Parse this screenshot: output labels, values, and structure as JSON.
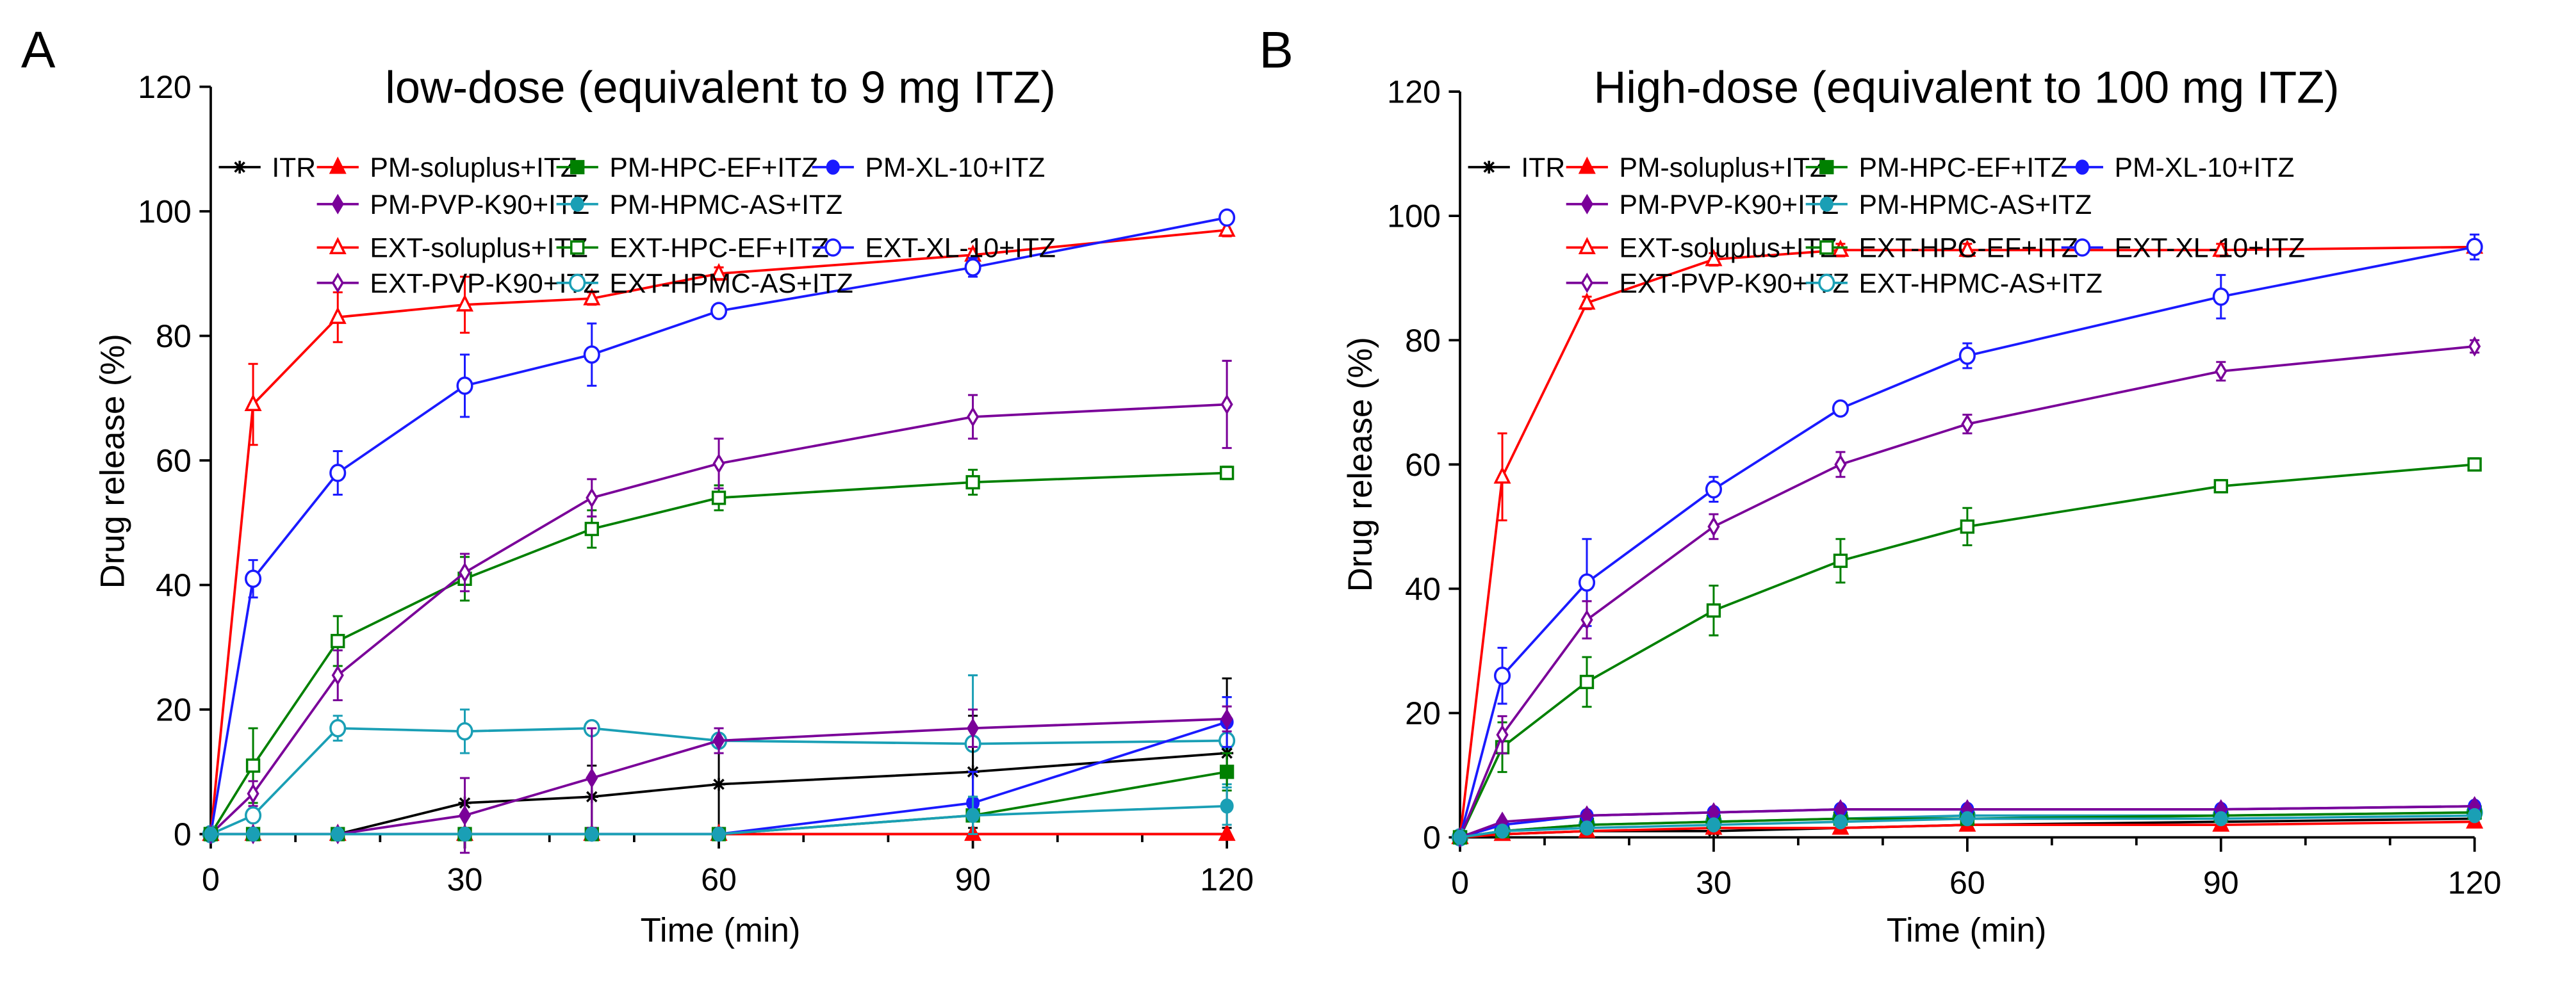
{
  "chart_data": [
    {
      "panel": "A",
      "type": "line",
      "title": "low-dose (equivalent to 9 mg ITZ)",
      "xlabel": "Time (min)",
      "ylabel": "Drug release (%)",
      "xlim": [
        0,
        120
      ],
      "ylim": [
        0,
        120
      ],
      "xticks": [
        0,
        30,
        60,
        90,
        120
      ],
      "yticks": [
        0,
        20,
        40,
        60,
        80,
        100,
        120
      ],
      "x": [
        0,
        5,
        15,
        30,
        45,
        60,
        90,
        120
      ],
      "legend_position": "top",
      "series": [
        {
          "name": "ITR",
          "color": "#000000",
          "marker": "star",
          "values": [
            0,
            0,
            0,
            5,
            6,
            8,
            10,
            13
          ],
          "err": [
            0,
            0,
            0,
            4,
            5,
            7,
            9,
            12
          ]
        },
        {
          "name": "PM-soluplus+ITZ",
          "color": "#ff0000",
          "marker": "triangle-filled",
          "values": [
            0,
            0,
            0,
            0,
            0,
            0,
            0,
            0
          ],
          "err": [
            0,
            0,
            0,
            0,
            0,
            0,
            0,
            0
          ]
        },
        {
          "name": "PM-HPC-EF+ITZ",
          "color": "#008000",
          "marker": "square-filled",
          "values": [
            0,
            0,
            0,
            0,
            0,
            0,
            3,
            10
          ],
          "err": [
            0,
            0,
            0,
            0,
            0,
            0,
            3,
            3
          ]
        },
        {
          "name": "PM-XL-10+ITZ",
          "color": "#1a1aff",
          "marker": "circle-filled",
          "values": [
            0,
            0,
            0,
            0,
            0,
            0,
            5,
            18
          ],
          "err": [
            0,
            0,
            0,
            0,
            0,
            0,
            5,
            4
          ]
        },
        {
          "name": "PM-PVP-K90+ITZ",
          "color": "#7a0099",
          "marker": "diamond-filled",
          "values": [
            0,
            0,
            0,
            3,
            9,
            15,
            17,
            18.5
          ],
          "err": [
            0,
            0,
            0,
            6,
            8,
            2,
            3,
            2
          ]
        },
        {
          "name": "PM-HPMC-AS+ITZ",
          "color": "#1a9fb5",
          "marker": "circle-filled",
          "values": [
            0,
            0,
            0,
            0,
            0,
            0,
            3,
            4.5
          ],
          "err": [
            0,
            0,
            0,
            0,
            0,
            0,
            3,
            3
          ]
        },
        {
          "name": "EXT-soluplus+ITZ",
          "color": "#ff0000",
          "marker": "triangle-open",
          "values": [
            0,
            69,
            83,
            85,
            86,
            90,
            93,
            97
          ],
          "err": [
            0,
            6.5,
            4,
            4.5,
            1,
            1,
            1,
            1
          ]
        },
        {
          "name": "EXT-HPC-EF+ITZ",
          "color": "#008000",
          "marker": "square-open",
          "values": [
            0,
            11,
            31,
            41,
            49,
            54,
            56.5,
            58
          ],
          "err": [
            0,
            6,
            4,
            3.5,
            3,
            2,
            2,
            1
          ]
        },
        {
          "name": "EXT-XL-10+ITZ",
          "color": "#1a1aff",
          "marker": "circle-open",
          "values": [
            0,
            41,
            58,
            72,
            77,
            84,
            91,
            99
          ],
          "err": [
            0,
            3,
            3.5,
            5,
            5,
            1,
            1.5,
            1
          ]
        },
        {
          "name": "EXT-PVP-K90+ITZ",
          "color": "#7a0099",
          "marker": "diamond-open",
          "values": [
            0,
            6.5,
            25.5,
            42,
            54,
            59.5,
            67,
            69
          ],
          "err": [
            0,
            2,
            4,
            3,
            3,
            4,
            3.5,
            7
          ]
        },
        {
          "name": "EXT-HPMC-AS+ITZ",
          "color": "#1a9fb5",
          "marker": "circle-open",
          "values": [
            0,
            3,
            17,
            16.5,
            17,
            15,
            14.5,
            15
          ],
          "err": [
            0,
            1,
            2,
            3.5,
            1,
            1,
            11,
            7
          ]
        }
      ]
    },
    {
      "panel": "B",
      "type": "line",
      "title": "High-dose (equivalent to 100 mg ITZ)",
      "xlabel": "Time (min)",
      "ylabel": "Drug release (%)",
      "xlim": [
        0,
        120
      ],
      "ylim": [
        0,
        120
      ],
      "xticks": [
        0,
        30,
        60,
        90,
        120
      ],
      "yticks": [
        0,
        20,
        40,
        60,
        80,
        100,
        120
      ],
      "x": [
        0,
        5,
        15,
        30,
        45,
        60,
        90,
        120
      ],
      "legend_position": "top",
      "series": [
        {
          "name": "ITR",
          "color": "#000000",
          "marker": "star",
          "values": [
            0,
            0.5,
            1,
            1,
            1.5,
            2,
            2.5,
            3
          ],
          "err": [
            0,
            0,
            0,
            0,
            0,
            0,
            0,
            0
          ]
        },
        {
          "name": "PM-soluplus+ITZ",
          "color": "#ff0000",
          "marker": "triangle-filled",
          "values": [
            0,
            0.5,
            1,
            1.5,
            1.5,
            2,
            2,
            2.5
          ],
          "err": [
            0,
            0,
            0,
            0,
            0,
            0,
            0,
            0
          ]
        },
        {
          "name": "PM-HPC-EF+ITZ",
          "color": "#008000",
          "marker": "square-filled",
          "values": [
            0,
            1,
            2,
            2.5,
            3,
            3,
            3.5,
            4
          ],
          "err": [
            0,
            0,
            0,
            0,
            0,
            0,
            0,
            0
          ]
        },
        {
          "name": "PM-XL-10+ITZ",
          "color": "#1a1aff",
          "marker": "circle-filled",
          "values": [
            0,
            2,
            3.5,
            4,
            4.5,
            4.5,
            4.5,
            5
          ],
          "err": [
            0,
            0,
            0,
            0,
            0,
            0,
            0,
            0
          ]
        },
        {
          "name": "PM-PVP-K90+ITZ",
          "color": "#7a0099",
          "marker": "diamond-filled",
          "values": [
            0,
            2.5,
            3.5,
            4,
            4.5,
            4.5,
            4.5,
            5
          ],
          "err": [
            0,
            0,
            0,
            0,
            0,
            0,
            0,
            0
          ]
        },
        {
          "name": "PM-HPMC-AS+ITZ",
          "color": "#1a9fb5",
          "marker": "circle-filled",
          "values": [
            0,
            1,
            1.5,
            2,
            2.5,
            3,
            3,
            3.5
          ],
          "err": [
            0,
            0,
            0,
            0,
            0,
            0,
            0,
            0
          ]
        },
        {
          "name": "EXT-soluplus+ITZ",
          "color": "#ff0000",
          "marker": "triangle-open",
          "values": [
            0,
            58,
            86,
            93,
            94.5,
            94.5,
            94.5,
            95
          ],
          "err": [
            0,
            7,
            1,
            1,
            1,
            1,
            1,
            1
          ]
        },
        {
          "name": "EXT-HPC-EF+ITZ",
          "color": "#008000",
          "marker": "square-open",
          "values": [
            0,
            14.5,
            25,
            36.5,
            44.5,
            50,
            56.5,
            60
          ],
          "err": [
            0,
            4,
            4,
            4,
            3.5,
            3,
            1,
            1
          ]
        },
        {
          "name": "EXT-XL-10+ITZ",
          "color": "#1a1aff",
          "marker": "circle-open",
          "values": [
            0,
            26,
            41,
            56,
            69,
            77.5,
            87,
            95
          ],
          "err": [
            0,
            4.5,
            7,
            2,
            1,
            2,
            3.5,
            2
          ]
        },
        {
          "name": "EXT-PVP-K90+ITZ",
          "color": "#7a0099",
          "marker": "diamond-open",
          "values": [
            0,
            16.5,
            35,
            50,
            60,
            66.5,
            75,
            79
          ],
          "err": [
            0,
            3,
            3,
            2,
            2,
            1.5,
            1.5,
            1
          ]
        },
        {
          "name": "EXT-HPMC-AS+ITZ",
          "color": "#1a9fb5",
          "marker": "circle-open",
          "values": [
            0,
            1,
            2,
            2.5,
            3,
            3.5,
            3.5,
            4
          ],
          "err": [
            0,
            0,
            0,
            0,
            0,
            0,
            0,
            0
          ]
        }
      ]
    }
  ]
}
